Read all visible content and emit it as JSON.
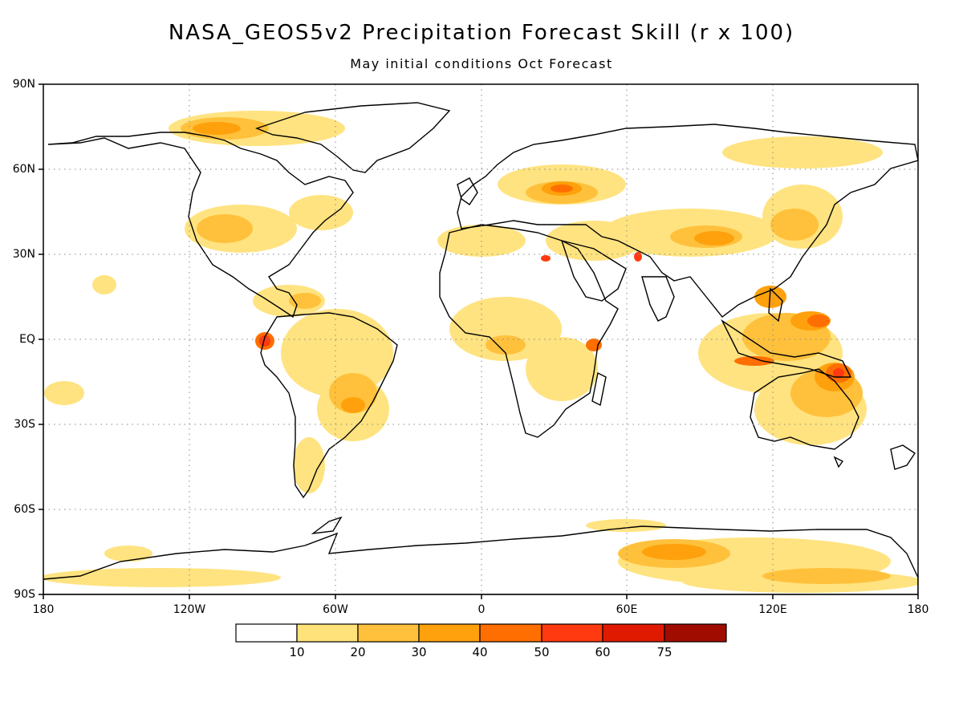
{
  "title": "NASA_GEOS5v2 Precipitation Forecast Skill (r x 100)",
  "subtitle": "May initial conditions  Oct Forecast",
  "lat_labels": [
    "90N",
    "60N",
    "30N",
    "EQ",
    "30S",
    "60S",
    "90S"
  ],
  "lon_labels": [
    "180",
    "120W",
    "60W",
    "0",
    "60E",
    "120E",
    "180"
  ],
  "colorbar": {
    "colors": [
      "#ffffff",
      "#ffe27a",
      "#ffc13c",
      "#ffa10c",
      "#ff6e00",
      "#ff3a10",
      "#e01a00",
      "#a00c00"
    ],
    "ticks": [
      "10",
      "20",
      "30",
      "40",
      "50",
      "60",
      "75"
    ]
  },
  "map": {
    "projection": "cylindrical equidistant",
    "lon_range": [
      -180,
      180
    ],
    "lat_range": [
      -90,
      90
    ],
    "grid": "dotted, every 60 deg longitude and 30 deg latitude",
    "field": "anomaly correlation of precipitation forecast x 100"
  }
}
